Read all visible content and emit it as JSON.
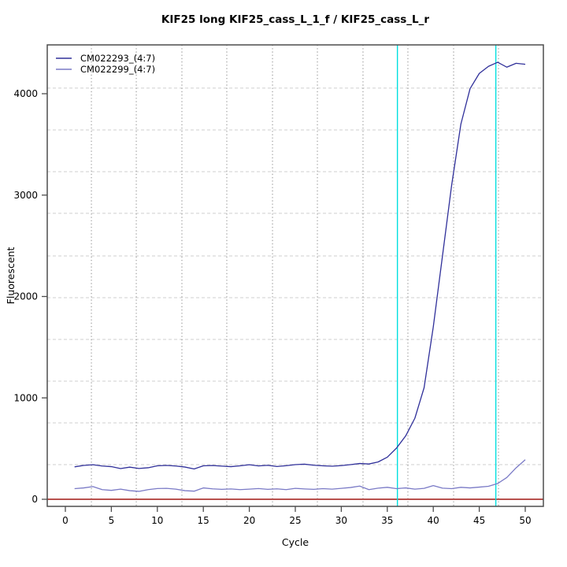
{
  "window": {
    "background": "#ffffff"
  },
  "chart_data": {
    "type": "line",
    "title": "KIF25 long KIF25_cass_L_1_f / KIF25_cass_L_r",
    "xlabel": "Cycle",
    "ylabel": "Fluorescent",
    "xlim": [
      -2,
      52.5
    ],
    "ylim": [
      -80,
      4480
    ],
    "x_ticks": [
      0,
      5,
      10,
      15,
      20,
      25,
      30,
      35,
      40,
      45,
      50
    ],
    "y_ticks": [
      0,
      1000,
      2000,
      3000,
      4000
    ],
    "axis_color": "#4d4d4d",
    "grid": {
      "vertical_style": "dotted",
      "horizontal_style": "dashed",
      "vertical_color": "#8a8a8a",
      "horizontal_color": "#cfcfcf",
      "vertical_x_cycles": [
        2.83,
        7.71,
        12.67,
        17.55,
        22.52,
        27.4,
        32.36,
        37.24,
        42.21,
        47.09
      ],
      "horizontal_y_values": [
        4055,
        3643,
        3231,
        2820,
        2400,
        1988,
        1577,
        1165,
        753,
        342
      ]
    },
    "threshold_line": {
      "y": 0,
      "color": "#b8514d"
    },
    "ct_lines": [
      {
        "x": 36.1,
        "color": "#00dfdf"
      },
      {
        "x": 46.8,
        "color": "#00dfdf"
      }
    ],
    "x": [
      1,
      2,
      3,
      4,
      5,
      6,
      7,
      8,
      9,
      10,
      11,
      12,
      13,
      14,
      15,
      16,
      17,
      18,
      19,
      20,
      21,
      22,
      23,
      24,
      25,
      26,
      27,
      28,
      29,
      30,
      31,
      32,
      33,
      34,
      35,
      36,
      37,
      38,
      39,
      40,
      41,
      42,
      43,
      44,
      45,
      46,
      47,
      48,
      49,
      50
    ],
    "series": [
      {
        "name": "CM022293_(4:7)",
        "color": "#30309a",
        "values": [
          320,
          334,
          341,
          328,
          322,
          303,
          317,
          304,
          311,
          330,
          334,
          328,
          318,
          299,
          330,
          333,
          327,
          322,
          330,
          341,
          329,
          335,
          323,
          331,
          342,
          346,
          336,
          330,
          326,
          332,
          342,
          353,
          348,
          368,
          415,
          505,
          625,
          800,
          1100,
          1700,
          2400,
          3100,
          3700,
          4050,
          4200,
          4270,
          4310,
          4262,
          4300,
          4290
        ]
      },
      {
        "name": "CM022299_(4:7)",
        "color": "#7a7ac6",
        "values": [
          105,
          112,
          125,
          95,
          88,
          100,
          85,
          78,
          95,
          106,
          108,
          100,
          85,
          80,
          112,
          103,
          98,
          102,
          95,
          100,
          106,
          98,
          103,
          95,
          108,
          102,
          98,
          105,
          100,
          108,
          116,
          130,
          95,
          110,
          118,
          105,
          112,
          100,
          108,
          135,
          110,
          105,
          118,
          112,
          120,
          128,
          155,
          215,
          310,
          390
        ]
      }
    ],
    "legend": {
      "position": "top-left",
      "entries": [
        {
          "label": "CM022293_(4:7)",
          "color": "#30309a"
        },
        {
          "label": "CM022299_(4:7)",
          "color": "#7a7ac6"
        }
      ]
    }
  }
}
